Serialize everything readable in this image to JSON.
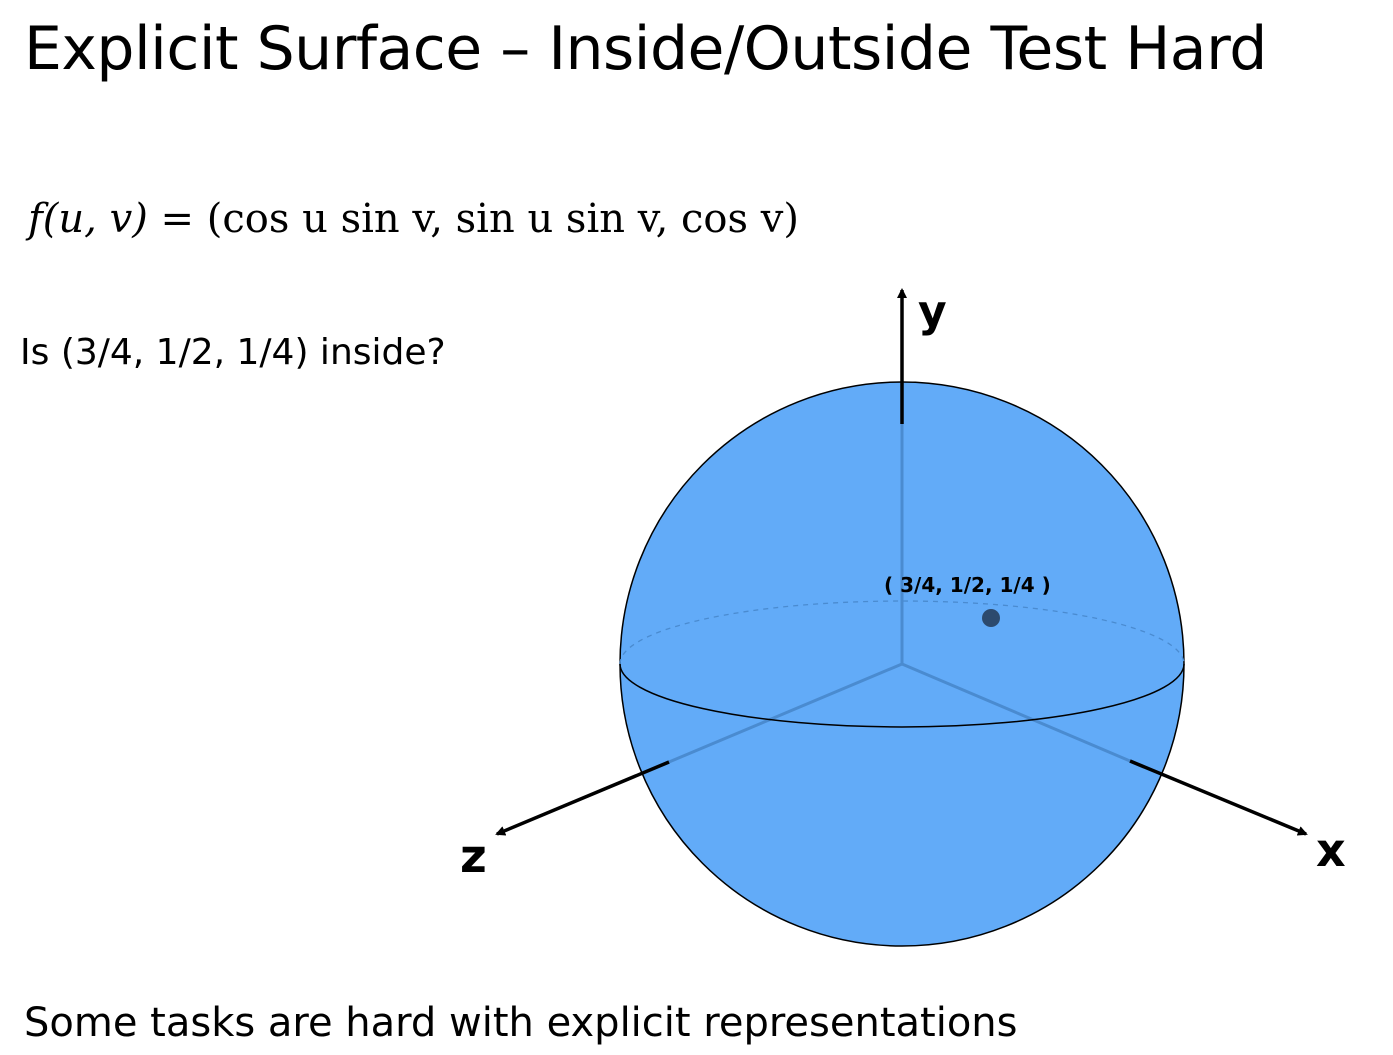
{
  "slide": {
    "title": "Explicit Surface – Inside/Outside Test Hard",
    "formula": {
      "lhs": "f(u, v)",
      "equals": "=",
      "rhs": "(cos u  sin v, sin u  sin v, cos v)"
    },
    "question": "Is (3/4, 1/2, 1/4) inside?",
    "footer": "Some tasks are hard with explicit representations"
  },
  "diagram": {
    "axes": {
      "x_label": "x",
      "y_label": "y",
      "z_label": "z"
    },
    "point_label": "( 3/4, 1/2, 1/4 )",
    "colors": {
      "sphere_fill": "#62abf8",
      "sphere_outline": "#000000",
      "hidden_axis": "#4a8bd0",
      "point": "#2c4a6e",
      "axis": "#000000"
    }
  }
}
